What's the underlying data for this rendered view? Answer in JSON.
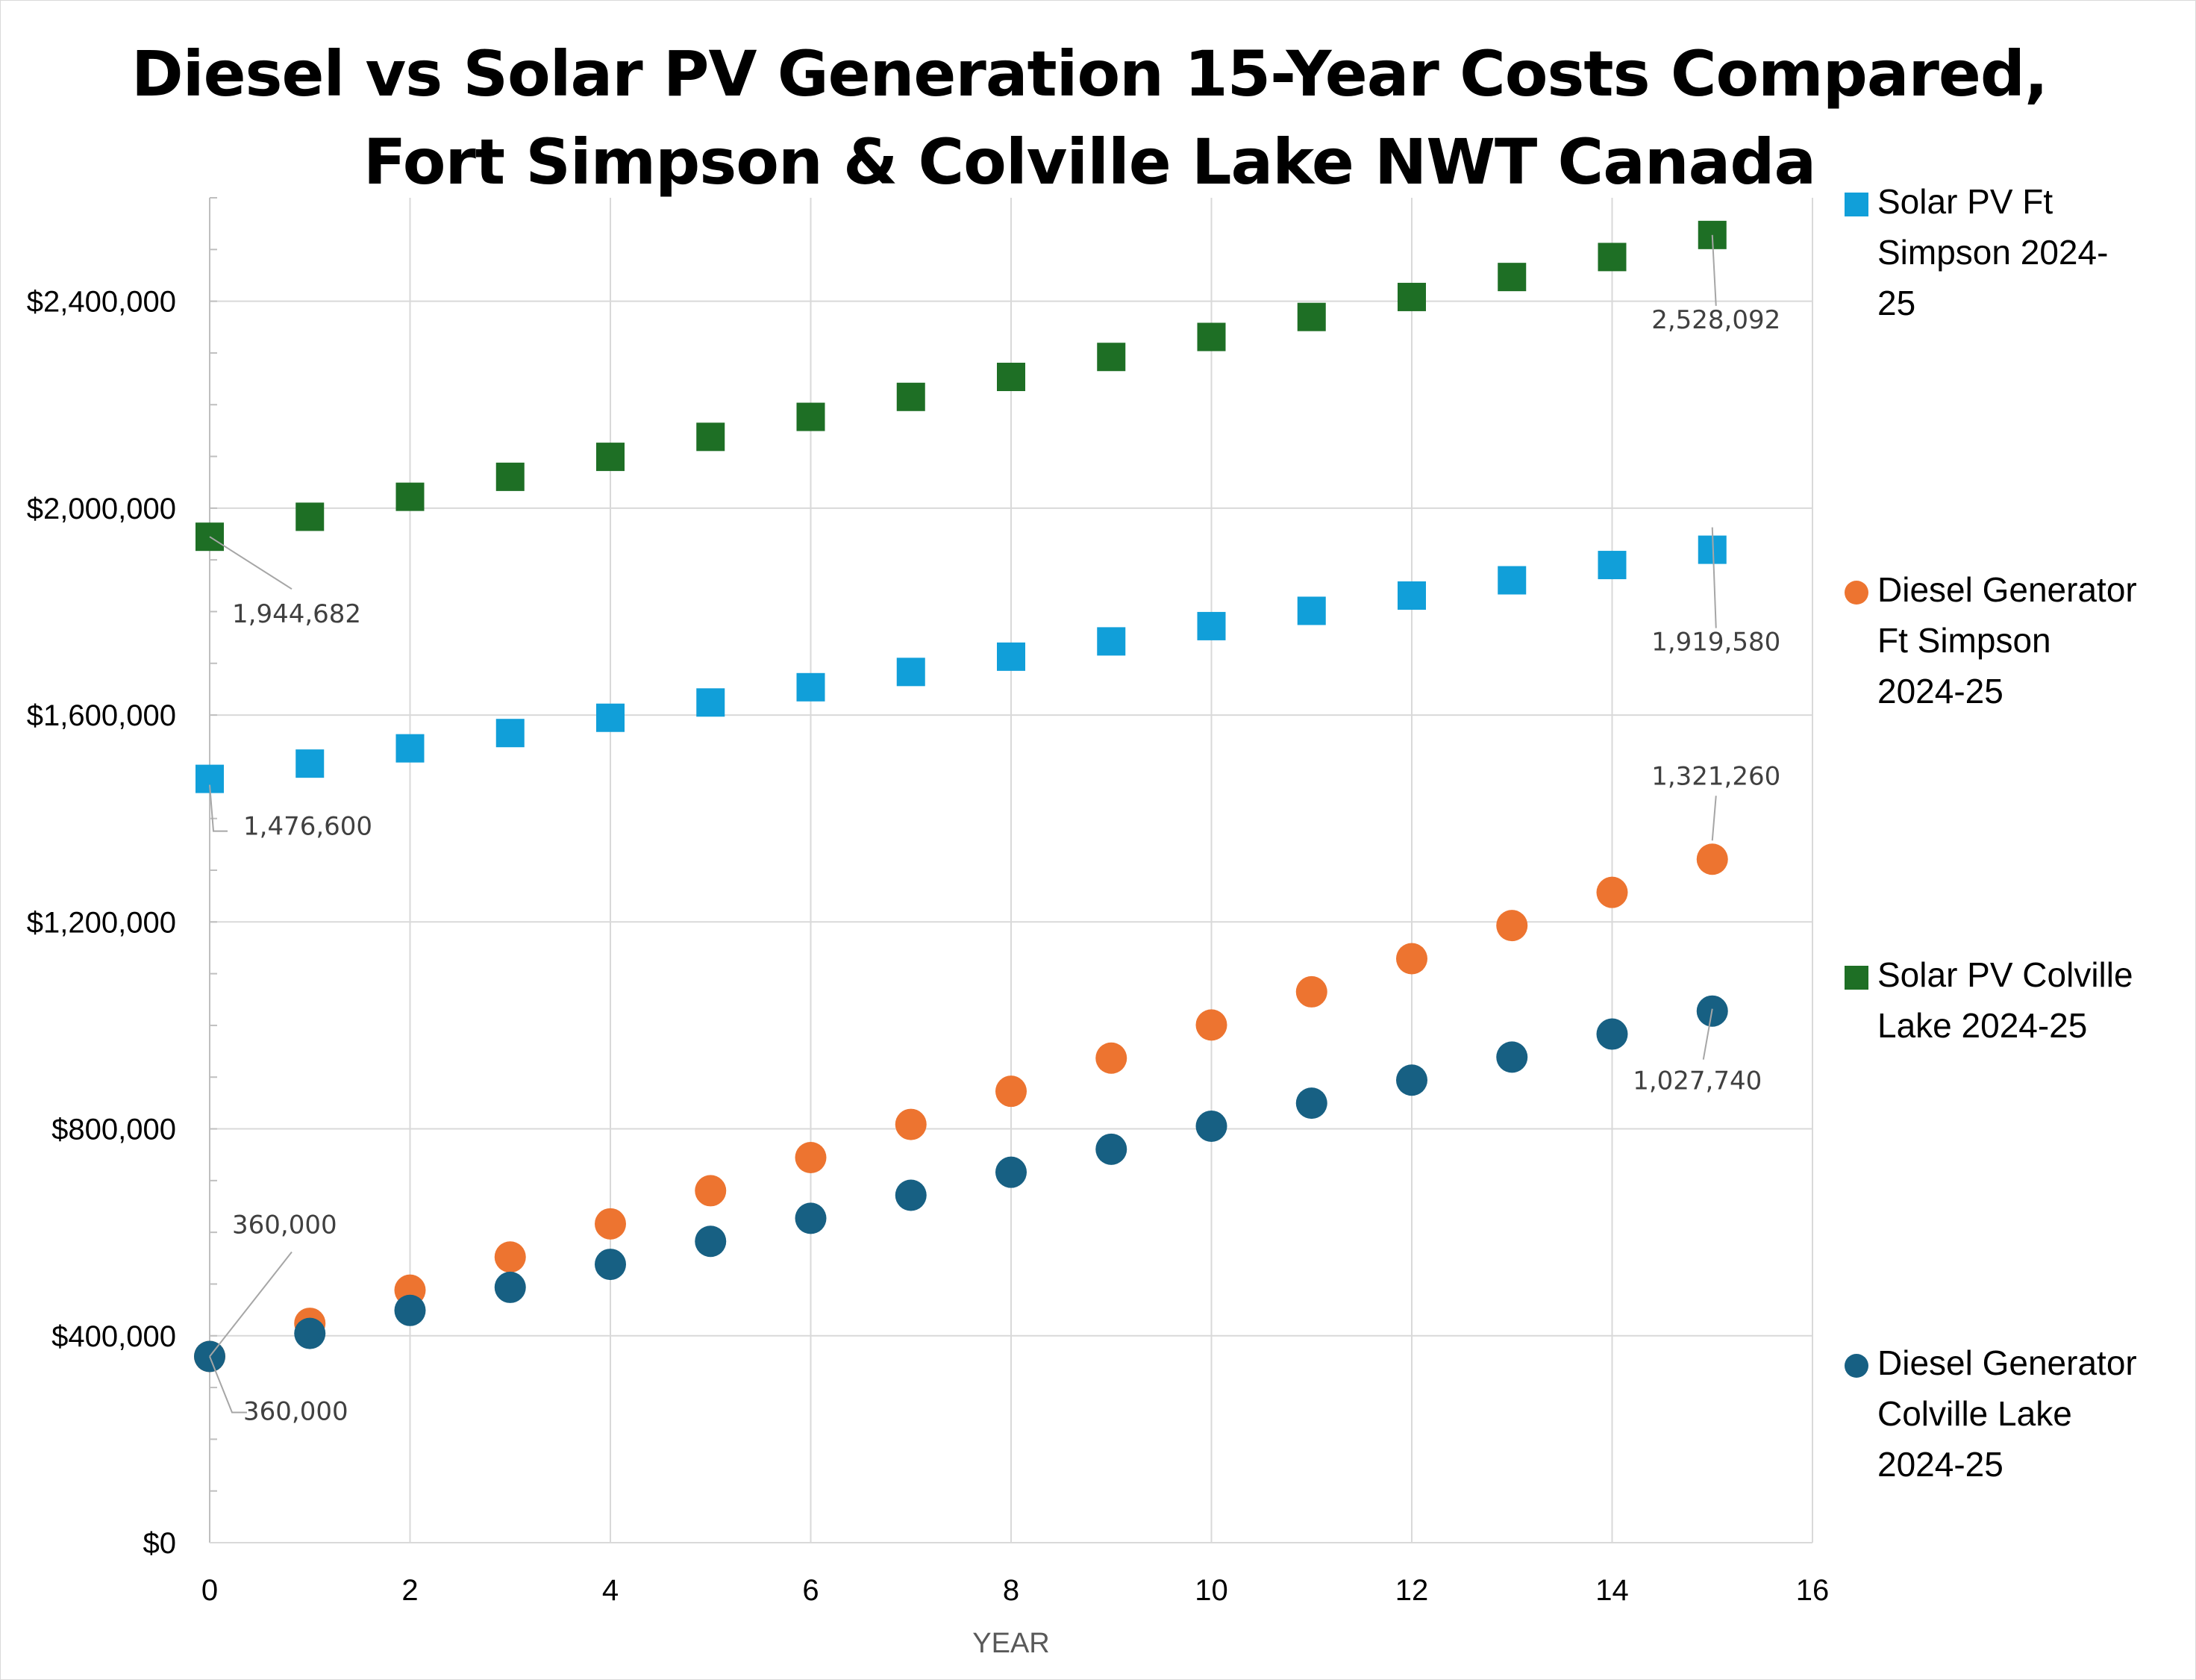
{
  "title_lines": [
    "Diesel vs Solar PV Generation 15-Year Costs Compared,",
    "Fort Simpson & Colville Lake NWT Canada"
  ],
  "chart_data": {
    "type": "scatter",
    "title": "Diesel vs Solar PV Generation 15-Year Costs Compared, Fort Simpson & Colville Lake NWT Canada",
    "xlabel": "YEAR",
    "ylabel": "",
    "xlim": [
      0,
      16
    ],
    "ylim": [
      0,
      2600000
    ],
    "x_ticks": [
      0,
      2,
      4,
      6,
      8,
      10,
      12,
      14,
      16
    ],
    "x_tick_labels": [
      "0",
      "2",
      "4",
      "6",
      "8",
      "10",
      "12",
      "14",
      "16"
    ],
    "y_ticks": [
      0,
      400000,
      800000,
      1200000,
      1600000,
      2000000,
      2400000
    ],
    "y_tick_labels": [
      "$0",
      "$400,000",
      "$800,000",
      "$1,200,000",
      "$1,600,000",
      "$2,000,000",
      "$2,400,000"
    ],
    "grid": true,
    "legend_position": "right",
    "x": [
      0,
      1,
      2,
      3,
      4,
      5,
      6,
      7,
      8,
      9,
      10,
      11,
      12,
      13,
      14,
      15
    ],
    "series": [
      {
        "name": "Solar PV Ft Simpson 2024-25",
        "marker": "square",
        "color": "#119fd9",
        "values": [
          1476600,
          1506132,
          1535664,
          1565196,
          1594728,
          1624260,
          1653792,
          1683324,
          1712856,
          1742388,
          1771920,
          1801452,
          1830984,
          1860516,
          1890048,
          1919580
        ]
      },
      {
        "name": "Diesel Generator Ft Simpson 2024-25",
        "marker": "circle",
        "color": "#ed7430",
        "values": [
          360000,
          424084,
          488168,
          552252,
          616336,
          680420,
          744504,
          808588,
          872672,
          936756,
          1000840,
          1064924,
          1129008,
          1193092,
          1257176,
          1321260
        ]
      },
      {
        "name": "Solar PV Colville Lake 2024-25",
        "marker": "square",
        "color": "#1e6f25",
        "values": [
          1944682,
          1983309,
          2021936,
          2060563,
          2099190,
          2137817,
          2176444,
          2215071,
          2253698,
          2292325,
          2330952,
          2369579,
          2408206,
          2446833,
          2485460,
          2528092
        ]
      },
      {
        "name": "Diesel Generator Colville Lake 2024-25",
        "marker": "circle",
        "color": "#176083",
        "values": [
          360000,
          404516,
          449032,
          493548,
          538064,
          582580,
          627096,
          671612,
          716128,
          760644,
          805160,
          849676,
          894192,
          938708,
          983224,
          1027740
        ]
      }
    ],
    "data_labels": [
      {
        "series": 0,
        "x": 0,
        "text": "1,476,600"
      },
      {
        "series": 0,
        "x": 15,
        "text": "1,919,580"
      },
      {
        "series": 1,
        "x": 0,
        "text": "360,000"
      },
      {
        "series": 1,
        "x": 15,
        "text": "1,321,260"
      },
      {
        "series": 2,
        "x": 0,
        "text": "1,944,682"
      },
      {
        "series": 2,
        "x": 15,
        "text": "2,528,092"
      },
      {
        "series": 3,
        "x": 0,
        "text": "360,000"
      },
      {
        "series": 3,
        "x": 15,
        "text": "1,027,740"
      }
    ]
  },
  "legend": [
    {
      "lines": [
        "Solar PV Ft",
        "Simpson 2024-",
        "25"
      ],
      "marker": "square",
      "color": "#119fd9"
    },
    {
      "lines": [
        "Diesel Generator",
        "Ft Simpson",
        "2024-25"
      ],
      "marker": "circle",
      "color": "#ed7430"
    },
    {
      "lines": [
        "Solar PV Colville",
        "Lake 2024-25"
      ],
      "marker": "square",
      "color": "#1e6f25"
    },
    {
      "lines": [
        "Diesel Generator",
        "Colville Lake",
        "2024-25"
      ],
      "marker": "circle",
      "color": "#176083"
    }
  ]
}
